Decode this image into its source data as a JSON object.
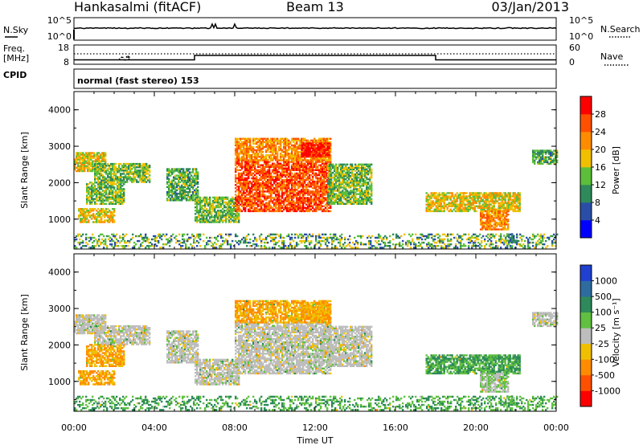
{
  "header": {
    "station": "Hankasalmi (fitACF)",
    "beam": "Beam 13",
    "date": "03/Jan/2013"
  },
  "strip_panels": {
    "nsky": {
      "label": "N.Sky",
      "ticks": [
        "10^5",
        "10^0"
      ]
    },
    "nsearch": {
      "label": "N.Search",
      "ticks": [
        "10^5",
        "10^0"
      ]
    },
    "freq": {
      "label_line1": "Freq.",
      "label_line2": "[MHz]",
      "ticks": [
        "18",
        "8"
      ]
    },
    "nave": {
      "label": "Nave",
      "ticks": [
        "60",
        "0"
      ]
    },
    "cpid": {
      "label": "CPID",
      "text": "normal (fast stereo) 153"
    }
  },
  "power_panel": {
    "ylabel": "Slant Range [km]",
    "yticks": [
      "1000",
      "2000",
      "3000",
      "4000"
    ],
    "colorbar_label": "Power [dB]",
    "colorbar_ticks": [
      "4",
      "8",
      "12",
      "16",
      "20",
      "24",
      "28"
    ],
    "colors": [
      "#0000ff",
      "#2a4ea8",
      "#2e8a5a",
      "#5cbf3a",
      "#f0c000",
      "#ff8c00",
      "#ff5000",
      "#ff0000"
    ]
  },
  "velocity_panel": {
    "ylabel": "Slant Range [km]",
    "yticks": [
      "1000",
      "2000",
      "3000",
      "4000"
    ],
    "colorbar_label": "Velocity  [m s⁻¹]",
    "colorbar_ticks": [
      "1000",
      "500",
      "100",
      "25",
      "-25",
      "-100",
      "-500",
      "-1000"
    ],
    "colors": [
      "#2040d0",
      "#2e6ca0",
      "#2e8a5a",
      "#60c040",
      "#bdbdbd",
      "#f0c000",
      "#ff8c00",
      "#ff5000",
      "#ff0000"
    ]
  },
  "xaxis": {
    "label": "Time UT",
    "ticks": [
      "00:00",
      "04:00",
      "08:00",
      "12:00",
      "16:00",
      "20:00",
      "00:00"
    ]
  },
  "chart_data": {
    "type": "heatmap",
    "title": "Hankasalmi (fitACF)",
    "subtitle": "Beam 13",
    "date": "03/Jan/2013",
    "xlabel": "Time UT",
    "ylabel": "Slant Range [km]",
    "xlim_hours": [
      0,
      24
    ],
    "ylim_km": [
      180,
      4500
    ],
    "frequency_mhz_by_time": [
      {
        "from_hour": 0,
        "to_hour": 6,
        "value": 10.3
      },
      {
        "from_hour": 6,
        "to_hour": 18,
        "value": 12.6
      },
      {
        "from_hour": 18,
        "to_hour": 24,
        "value": 10.3
      }
    ],
    "scatter_regions": [
      {
        "t0": 0.0,
        "t1": 1.6,
        "r0": 2300,
        "r1": 2800,
        "power_db": 18,
        "velocity": 0
      },
      {
        "t0": 0.2,
        "t1": 2.0,
        "r0": 900,
        "r1": 1300,
        "power_db": 18,
        "velocity": -100
      },
      {
        "t0": 0.6,
        "t1": 2.5,
        "r0": 1400,
        "r1": 2000,
        "power_db": 14,
        "velocity": -100
      },
      {
        "t0": 1.0,
        "t1": 3.8,
        "r0": 2000,
        "r1": 2500,
        "power_db": 14,
        "velocity": 0
      },
      {
        "t0": 4.6,
        "t1": 6.2,
        "r0": 1500,
        "r1": 2400,
        "power_db": 12,
        "velocity": 0
      },
      {
        "t0": 6.0,
        "t1": 8.2,
        "r0": 900,
        "r1": 1600,
        "power_db": 14,
        "velocity": 0
      },
      {
        "t0": 8.0,
        "t1": 12.8,
        "r0": 1200,
        "r1": 2600,
        "power_db": 26,
        "velocity": 0
      },
      {
        "t0": 8.0,
        "t1": 12.8,
        "r0": 2600,
        "r1": 3200,
        "power_db": 22,
        "velocity": -100
      },
      {
        "t0": 11.3,
        "t1": 12.7,
        "r0": 2700,
        "r1": 3100,
        "power_db": 30,
        "velocity": -100
      },
      {
        "t0": 12.6,
        "t1": 14.8,
        "r0": 1400,
        "r1": 2500,
        "power_db": 14,
        "velocity": 0
      },
      {
        "t0": 17.5,
        "t1": 22.2,
        "r0": 1200,
        "r1": 1700,
        "power_db": 18,
        "velocity": 100
      },
      {
        "t0": 20.2,
        "t1": 21.6,
        "r0": 700,
        "r1": 1200,
        "power_db": 22,
        "velocity": 25
      },
      {
        "t0": 21.2,
        "t1": 22.0,
        "r0": 300,
        "r1": 600,
        "power_db": 30,
        "velocity": 100
      },
      {
        "t0": 22.8,
        "t1": 24.0,
        "r0": 2500,
        "r1": 2900,
        "power_db": 12,
        "velocity": 0
      },
      {
        "t0": 0.0,
        "t1": 24.0,
        "r0": 200,
        "r1": 600,
        "power_db": 10,
        "velocity": 100
      }
    ]
  }
}
